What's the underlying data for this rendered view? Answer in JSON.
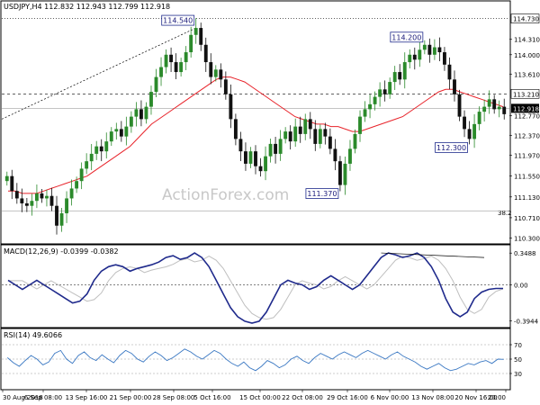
{
  "chart_data": {
    "type": "candlestick",
    "title": "USDJPY,H4  112.832 112.943 112.799 112.918",
    "watermark": "ActionForex.com",
    "colors": {
      "bull": "#2b8a2b",
      "bear": "#111111",
      "ma": "#e8232a",
      "macd": "#1f2a8c",
      "macd_signal": "#bfbfbf",
      "rsi": "#3a78c3",
      "axis": "#000000",
      "callout_border": "#1f2a8c",
      "current_price_bg": "#000000"
    },
    "x_labels": [
      "30 Aug 2018",
      "6 Sep 08:00",
      "13 Sep 16:00",
      "21 Sep 00:00",
      "28 Sep 08:00",
      "5 Oct 16:00",
      "15 Oct 00:00",
      "22 Oct 08:00",
      "29 Oct 16:00",
      "6 Nov 00:00",
      "13 Nov 08:00",
      "20 Nov 16:00",
      "20:00"
    ],
    "price_axis": {
      "min": 110.2,
      "max": 114.85,
      "ticks": [
        "114.730",
        "114.310",
        "114.000",
        "113.610",
        "113.210",
        "112.918",
        "112.770",
        "112.370",
        "111.970",
        "111.550",
        "111.130",
        "110.710",
        "110.300"
      ],
      "current": "112.918"
    },
    "price_series": [
      111.55,
      111.25,
      111.1,
      111.0,
      110.95,
      111.05,
      111.2,
      111.1,
      111.15,
      110.95,
      110.55,
      110.8,
      111.1,
      111.3,
      111.45,
      111.7,
      111.85,
      112.0,
      112.15,
      112.05,
      112.25,
      112.45,
      112.5,
      112.35,
      112.55,
      112.75,
      112.9,
      112.7,
      112.95,
      113.25,
      113.55,
      113.75,
      114.0,
      113.85,
      113.65,
      113.85,
      114.05,
      114.4,
      114.54,
      114.2,
      113.85,
      113.55,
      113.7,
      113.5,
      113.2,
      112.7,
      112.3,
      112.05,
      111.8,
      112.05,
      111.75,
      111.65,
      111.95,
      112.2,
      112.0,
      112.3,
      112.45,
      112.25,
      112.55,
      112.4,
      112.7,
      112.5,
      112.2,
      112.5,
      112.35,
      112.1,
      111.85,
      111.37,
      111.8,
      112.1,
      112.4,
      112.75,
      112.9,
      113.0,
      113.15,
      113.3,
      113.2,
      113.45,
      113.65,
      113.5,
      113.85,
      114.0,
      113.9,
      114.1,
      114.2,
      114.0,
      114.15,
      114.05,
      113.8,
      113.5,
      113.2,
      112.75,
      112.5,
      112.3,
      112.6,
      112.85,
      112.95,
      113.1,
      112.9,
      112.95,
      112.8
    ],
    "ma_series": [
      111.25,
      111.25,
      111.2,
      111.2,
      111.2,
      111.25,
      111.3,
      111.35,
      111.4,
      111.45,
      111.5,
      111.55,
      111.65,
      111.75,
      111.85,
      111.95,
      112.05,
      112.15,
      112.3,
      112.45,
      112.6,
      112.7,
      112.8,
      112.9,
      113.0,
      113.1,
      113.2,
      113.3,
      113.4,
      113.5,
      113.55,
      113.55,
      113.5,
      113.45,
      113.35,
      113.25,
      113.15,
      113.05,
      112.95,
      112.85,
      112.75,
      112.7,
      112.65,
      112.6,
      112.6,
      112.55,
      112.55,
      112.5,
      112.45,
      112.45,
      112.5,
      112.55,
      112.6,
      112.65,
      112.7,
      112.75,
      112.85,
      112.95,
      113.05,
      113.15,
      113.25,
      113.3,
      113.3,
      113.25,
      113.2,
      113.15,
      113.1,
      113.05,
      113.0,
      112.95
    ],
    "annotations": [
      {
        "label": "114.540",
        "index": 38,
        "price": 114.54,
        "pos": "above"
      },
      {
        "label": "111.370",
        "index": 67,
        "price": 111.37,
        "pos": "below"
      },
      {
        "label": "114.200",
        "index": 84,
        "price": 114.2,
        "pos": "above"
      },
      {
        "label": "112.300",
        "index": 93,
        "price": 112.3,
        "pos": "below"
      }
    ],
    "fib_label": "38.2",
    "fib_level": 110.85,
    "h_lines": [
      {
        "price": 114.73,
        "style": "dotted"
      },
      {
        "price": 113.21,
        "style": "dashed"
      },
      {
        "price": 110.85,
        "style": "solid-thin"
      },
      {
        "price": 112.918,
        "style": "solid-thin"
      }
    ],
    "trendline": {
      "from_price": 112.7,
      "to_index": 38,
      "to_price": 114.54
    },
    "macd": {
      "title": "MACD(12,26,9) -0.0399 -0.0382",
      "ticks": [
        "0.3488",
        "0.00",
        "-0.3944"
      ],
      "min": -0.45,
      "max": 0.42,
      "values": [
        0.05,
        0.0,
        -0.05,
        0.0,
        0.05,
        0.0,
        -0.05,
        -0.1,
        -0.15,
        -0.2,
        -0.18,
        -0.1,
        0.05,
        0.15,
        0.2,
        0.22,
        0.2,
        0.15,
        0.18,
        0.2,
        0.22,
        0.25,
        0.3,
        0.32,
        0.28,
        0.3,
        0.35,
        0.3,
        0.2,
        0.05,
        -0.1,
        -0.25,
        -0.35,
        -0.4,
        -0.42,
        -0.4,
        -0.3,
        -0.15,
        0.0,
        0.05,
        0.02,
        0.0,
        -0.05,
        -0.02,
        0.05,
        0.1,
        0.05,
        0.0,
        -0.05,
        0.0,
        0.1,
        0.2,
        0.3,
        0.35,
        0.33,
        0.3,
        0.32,
        0.35,
        0.3,
        0.2,
        0.05,
        -0.15,
        -0.3,
        -0.35,
        -0.3,
        -0.15,
        -0.08,
        -0.05,
        -0.04,
        -0.04
      ],
      "signal_offset": 2,
      "trendline_from": 0.35,
      "trendline_to": 0.3
    },
    "rsi": {
      "title": "RSI(14) 49.6066",
      "ticks": [
        "70",
        "50",
        "30"
      ],
      "min": 10,
      "max": 90,
      "values": [
        52,
        45,
        40,
        48,
        55,
        50,
        42,
        46,
        58,
        62,
        50,
        44,
        55,
        60,
        52,
        48,
        56,
        50,
        45,
        55,
        62,
        58,
        50,
        46,
        54,
        60,
        55,
        48,
        52,
        58,
        64,
        60,
        54,
        50,
        56,
        62,
        58,
        50,
        44,
        40,
        46,
        38,
        34,
        40,
        48,
        44,
        38,
        42,
        50,
        54,
        48,
        44,
        52,
        58,
        54,
        50,
        56,
        60,
        56,
        52,
        58,
        62,
        58,
        54,
        50,
        56,
        60,
        54,
        50,
        46,
        40,
        36,
        40,
        44,
        38,
        34,
        36,
        40,
        44,
        42,
        46,
        48,
        44,
        50,
        49.6
      ]
    }
  }
}
